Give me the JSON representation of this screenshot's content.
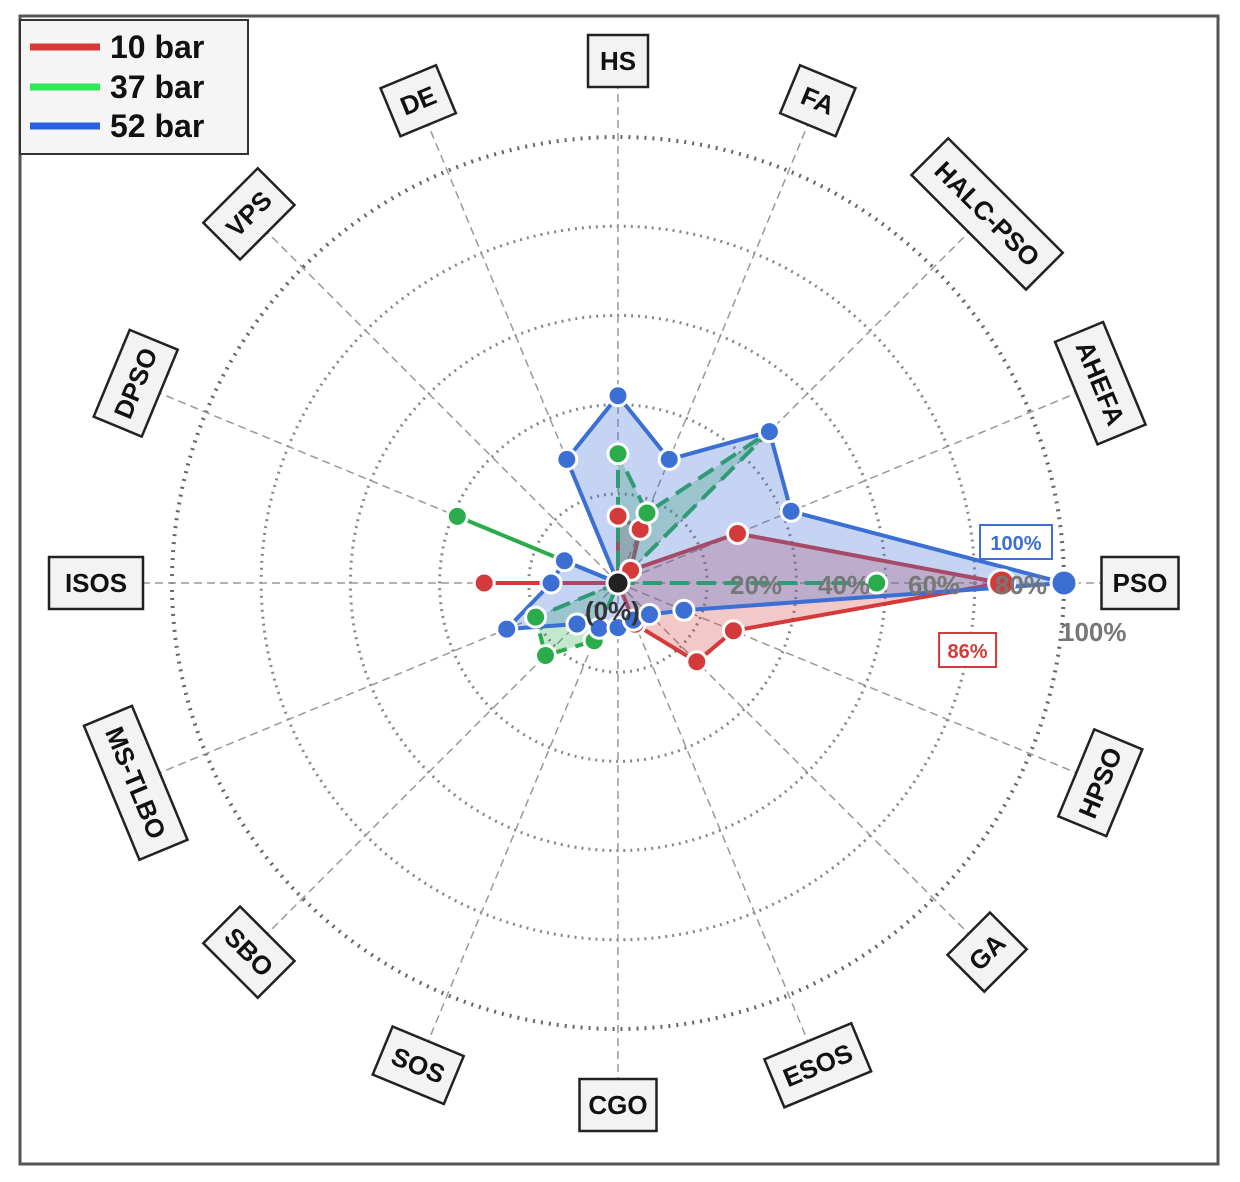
{
  "chart_data": {
    "type": "radar",
    "categories": [
      "PSO",
      "AHEFA",
      "HALC-PSO",
      "FA",
      "HS",
      "DE",
      "VPS",
      "DPSO",
      "ISOS",
      "MS-TLBO",
      "SBO",
      "SOS",
      "CGO",
      "ESOS",
      "GA",
      "HPSO"
    ],
    "radial_ticks": [
      "20%",
      "40%",
      "60%",
      "80%",
      "100%"
    ],
    "center_label": "(0%)",
    "outer_label": "100%",
    "rlim": [
      0,
      100
    ],
    "grid": true,
    "legend_position": "top-left",
    "series": [
      {
        "name": "10 bar",
        "color": "#d43a3a",
        "line_style": "solid",
        "values": [
          86,
          29,
          4,
          13,
          15,
          0,
          0,
          0,
          30,
          0,
          0,
          0,
          0,
          10,
          25,
          28
        ],
        "highlight": {
          "index": 0,
          "label": "86%"
        }
      },
      {
        "name": "37 bar",
        "color": "#2aac4a",
        "line_style": "dashed",
        "values": [
          58,
          0,
          48,
          17,
          29,
          0,
          0,
          39,
          0,
          20,
          23,
          14,
          0,
          0,
          0,
          0
        ],
        "highlight": null
      },
      {
        "name": "52 bar",
        "color": "#3b6fd4",
        "line_style": "solid",
        "values": [
          100,
          42,
          48,
          30,
          42,
          30,
          0,
          13,
          15,
          27,
          13,
          11,
          10,
          9,
          10,
          16
        ],
        "highlight": {
          "index": 0,
          "label": "100%"
        }
      }
    ]
  }
}
